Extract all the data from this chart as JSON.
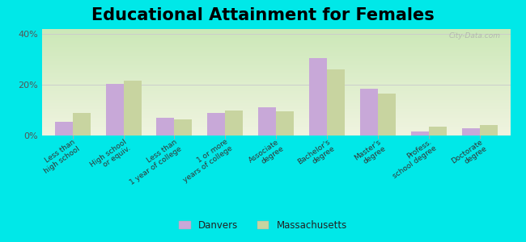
{
  "title": "Educational Attainment for Females",
  "categories": [
    "Less than\nhigh school",
    "High school\nor equiv.",
    "Less than\n1 year of college",
    "1 or more\nyears of college",
    "Associate\ndegree",
    "Bachelor's\ndegree",
    "Master's\ndegree",
    "Profess.\nschool degree",
    "Doctorate\ndegree"
  ],
  "danvers_values": [
    5.5,
    20.5,
    7.0,
    9.0,
    11.0,
    30.5,
    18.5,
    1.5,
    3.0
  ],
  "massachusetts_values": [
    9.0,
    21.5,
    6.5,
    10.0,
    9.5,
    26.0,
    16.5,
    3.5,
    4.0
  ],
  "danvers_color": "#c8a8d8",
  "massachusetts_color": "#c8d4a0",
  "outer_background": "#00e8e8",
  "ylim": [
    0,
    42
  ],
  "yticks": [
    0,
    20,
    40
  ],
  "ytick_labels": [
    "0%",
    "20%",
    "40%"
  ],
  "legend_label_danvers": "Danvers",
  "legend_label_massachusetts": "Massachusetts",
  "title_fontsize": 15,
  "watermark": "City-Data.com"
}
